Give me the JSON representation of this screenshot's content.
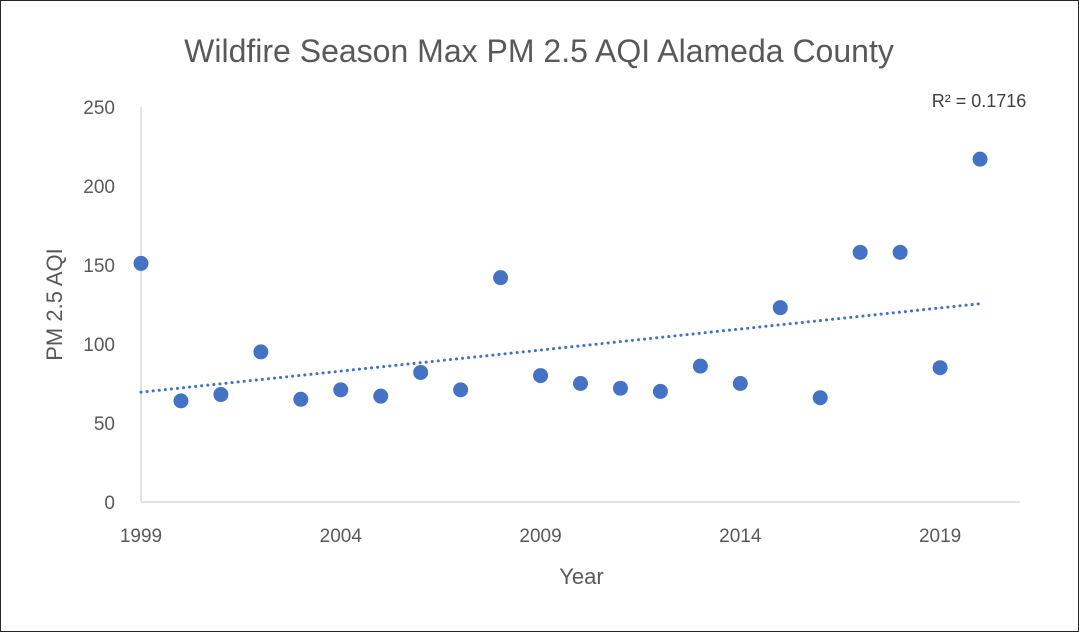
{
  "chart_data": {
    "type": "scatter",
    "title": "Wildfire Season Max PM 2.5 AQI Alameda County",
    "xlabel": "Year",
    "ylabel": "PM 2.5 AQI",
    "xlim": [
      1999,
      2021
    ],
    "ylim": [
      0,
      250
    ],
    "x_ticks": [
      1999,
      2004,
      2009,
      2014,
      2019
    ],
    "y_ticks": [
      0,
      50,
      100,
      150,
      200,
      250
    ],
    "grid": false,
    "legend": "none",
    "marker_color": "#4472C4",
    "series": [
      {
        "x": [
          1999,
          2000,
          2001,
          2002,
          2003,
          2004,
          2005,
          2006,
          2007,
          2008,
          2009,
          2010,
          2011,
          2012,
          2013,
          2014,
          2015,
          2016,
          2017,
          2018,
          2019,
          2020
        ],
        "y": [
          151,
          64,
          68,
          95,
          65,
          71,
          67,
          82,
          71,
          142,
          80,
          75,
          72,
          70,
          86,
          75,
          123,
          66,
          158,
          158,
          85,
          217
        ]
      }
    ],
    "trendline": {
      "type": "linear",
      "style": "dotted",
      "color": "#4472C4",
      "x": [
        1999,
        2020
      ],
      "y": [
        69.5,
        125.5
      ],
      "r_squared_label": "R² = 0.1716"
    }
  }
}
